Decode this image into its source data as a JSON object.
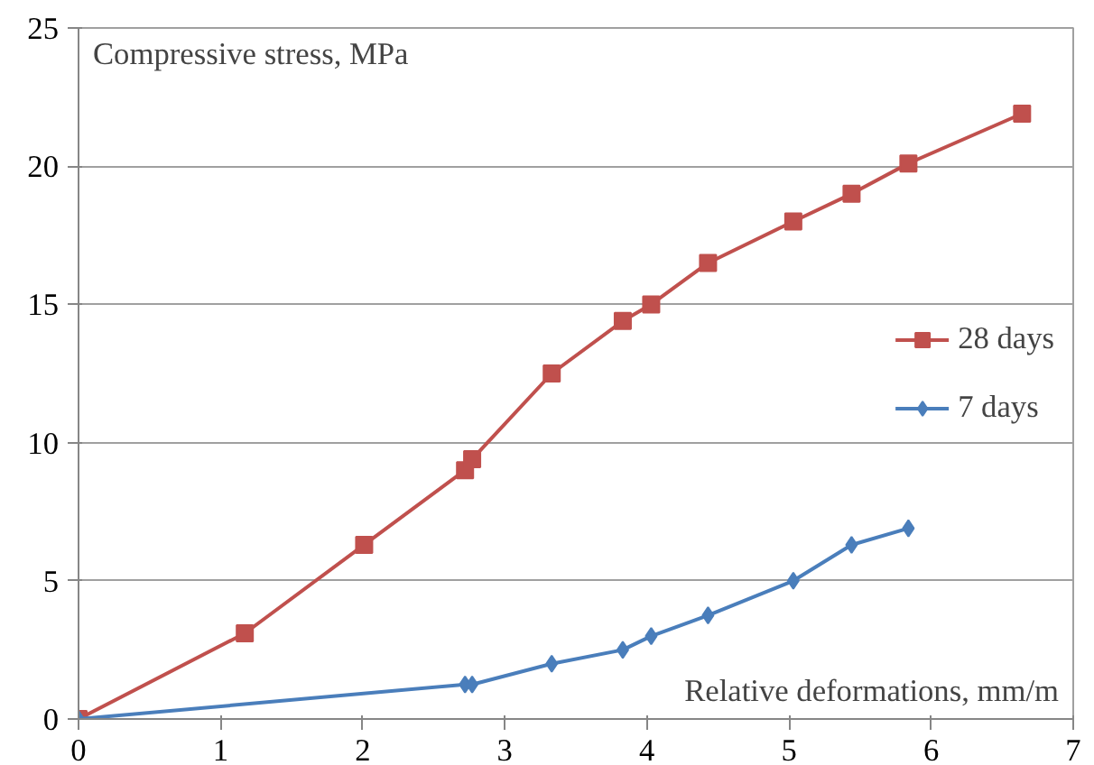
{
  "chart_data": {
    "type": "line",
    "xlabel": "Relative deformations, mm/m",
    "ylabel": "Compressive stress, MPa",
    "xlim": [
      0,
      7
    ],
    "xticks": [
      0,
      1,
      2,
      3,
      4,
      5,
      6,
      7
    ],
    "ylim": [
      0,
      25
    ],
    "yticks": [
      0,
      5,
      10,
      15,
      20,
      25
    ],
    "grid": "y",
    "legend": "right",
    "series": [
      {
        "name": "28 days",
        "color": "#c0504d",
        "marker": "square",
        "x": [
          0,
          1.17,
          2.01,
          2.72,
          2.77,
          3.33,
          3.83,
          4.03,
          4.43,
          5.03,
          5.44,
          5.84,
          6.64
        ],
        "values": [
          0,
          3.1,
          6.3,
          9.0,
          9.4,
          12.5,
          14.4,
          15.0,
          16.5,
          18.0,
          19.0,
          20.1,
          21.9
        ]
      },
      {
        "name": "7 days",
        "color": "#4a7ebb",
        "marker": "diamond",
        "x": [
          0,
          2.72,
          2.77,
          3.33,
          3.83,
          4.03,
          4.43,
          5.03,
          5.44,
          5.84
        ],
        "values": [
          0,
          1.25,
          1.25,
          2.0,
          2.5,
          3.0,
          3.75,
          5.0,
          6.3,
          6.9
        ]
      }
    ]
  }
}
